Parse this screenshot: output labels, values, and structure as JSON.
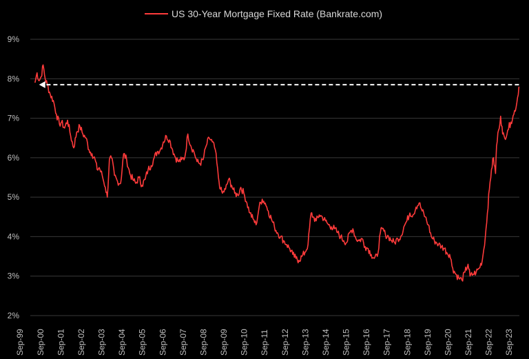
{
  "chart_data": {
    "type": "line",
    "title": "",
    "xlabel": "",
    "ylabel": "",
    "ylim": [
      2,
      9
    ],
    "ytick_values": [
      2,
      3,
      4,
      5,
      6,
      7,
      8,
      9
    ],
    "ytick_labels": [
      "2%",
      "3%",
      "4%",
      "5%",
      "6%",
      "7%",
      "8%",
      "9%"
    ],
    "xtick_labels": [
      "Sep-99",
      "Sep-00",
      "Sep-01",
      "Sep-02",
      "Sep-03",
      "Sep-04",
      "Sep-05",
      "Sep-06",
      "Sep-07",
      "Sep-08",
      "Sep-09",
      "Sep-10",
      "Sep-11",
      "Sep-12",
      "Sep-13",
      "Sep-14",
      "Sep-15",
      "Sep-16",
      "Sep-17",
      "Sep-18",
      "Sep-19",
      "Sep-20",
      "Sep-21",
      "Sep-22",
      "Sep-23"
    ],
    "xlim_years": [
      1999.67,
      2023.67
    ],
    "grid": "horizontal",
    "legend_position": "top-center",
    "series": [
      {
        "name": "US 30-Year Mortgage Fixed Rate (Bankrate.com)",
        "color": "#ff3b3b",
        "x": [
          1999.9,
          2000.0,
          2000.1,
          2000.2,
          2000.3,
          2000.4,
          2000.5,
          2000.65,
          2000.8,
          2000.95,
          2001.1,
          2001.2,
          2001.35,
          2001.5,
          2001.65,
          2001.8,
          2001.95,
          2002.1,
          2002.25,
          2002.4,
          2002.55,
          2002.7,
          2002.85,
          2002.95,
          2003.05,
          2003.2,
          2003.35,
          2003.45,
          2003.55,
          2003.65,
          2003.8,
          2003.95,
          2004.1,
          2004.25,
          2004.4,
          2004.55,
          2004.7,
          2004.85,
          2005.0,
          2005.15,
          2005.3,
          2005.45,
          2005.6,
          2005.75,
          2005.9,
          2006.05,
          2006.2,
          2006.35,
          2006.5,
          2006.65,
          2006.8,
          2006.95,
          2007.1,
          2007.25,
          2007.4,
          2007.55,
          2007.7,
          2007.85,
          2008.0,
          2008.15,
          2008.3,
          2008.45,
          2008.6,
          2008.75,
          2008.9,
          2009.0,
          2009.1,
          2009.25,
          2009.4,
          2009.55,
          2009.7,
          2009.85,
          2010.0,
          2010.15,
          2010.3,
          2010.45,
          2010.6,
          2010.75,
          2010.9,
          2011.05,
          2011.2,
          2011.35,
          2011.5,
          2011.65,
          2011.8,
          2011.95,
          2012.1,
          2012.25,
          2012.4,
          2012.55,
          2012.7,
          2012.85,
          2013.0,
          2013.15,
          2013.3,
          2013.45,
          2013.55,
          2013.7,
          2013.85,
          2014.0,
          2014.15,
          2014.3,
          2014.45,
          2014.6,
          2014.75,
          2014.9,
          2015.05,
          2015.2,
          2015.35,
          2015.5,
          2015.65,
          2015.8,
          2015.95,
          2016.1,
          2016.25,
          2016.4,
          2016.55,
          2016.7,
          2016.85,
          2016.95,
          2017.1,
          2017.25,
          2017.4,
          2017.55,
          2017.7,
          2017.85,
          2018.0,
          2018.15,
          2018.3,
          2018.45,
          2018.6,
          2018.75,
          2018.9,
          2019.05,
          2019.2,
          2019.35,
          2019.5,
          2019.6,
          2019.7,
          2019.85,
          2020.0,
          2020.1,
          2020.25,
          2020.4,
          2020.55,
          2020.7,
          2020.85,
          2021.0,
          2021.15,
          2021.25,
          2021.4,
          2021.55,
          2021.7,
          2021.85,
          2022.0,
          2022.1,
          2022.2,
          2022.3,
          2022.4,
          2022.5,
          2022.55,
          2022.65,
          2022.75,
          2022.85,
          2022.95,
          2023.1,
          2023.25,
          2023.4,
          2023.55,
          2023.65
        ],
        "values": [
          7.9,
          8.15,
          7.95,
          8.05,
          8.35,
          8.0,
          7.85,
          7.6,
          7.45,
          7.1,
          6.85,
          6.9,
          6.75,
          6.95,
          6.55,
          6.25,
          6.65,
          6.8,
          6.6,
          6.5,
          6.2,
          6.1,
          5.95,
          5.7,
          5.75,
          5.55,
          5.25,
          5.0,
          5.95,
          6.0,
          5.55,
          5.4,
          5.35,
          6.1,
          5.95,
          5.6,
          5.45,
          5.35,
          5.5,
          5.3,
          5.45,
          5.7,
          5.8,
          6.0,
          6.15,
          6.2,
          6.4,
          6.55,
          6.45,
          6.2,
          6.0,
          5.9,
          5.95,
          6.0,
          6.6,
          6.3,
          6.15,
          5.9,
          5.85,
          5.95,
          6.3,
          6.5,
          6.4,
          6.2,
          5.5,
          5.2,
          5.1,
          5.2,
          5.45,
          5.3,
          5.1,
          5.05,
          5.25,
          5.1,
          4.85,
          4.6,
          4.45,
          4.3,
          4.75,
          4.95,
          4.85,
          4.65,
          4.45,
          4.25,
          4.1,
          4.0,
          3.9,
          3.8,
          3.7,
          3.55,
          3.45,
          3.4,
          3.5,
          3.6,
          3.8,
          4.6,
          4.5,
          4.4,
          4.55,
          4.5,
          4.4,
          4.3,
          4.25,
          4.2,
          4.1,
          4.0,
          3.9,
          3.85,
          4.1,
          4.2,
          3.95,
          3.9,
          3.95,
          3.75,
          3.7,
          3.55,
          3.45,
          3.5,
          4.1,
          4.2,
          4.05,
          4.0,
          3.9,
          3.85,
          3.95,
          4.0,
          4.25,
          4.4,
          4.6,
          4.55,
          4.75,
          4.85,
          4.65,
          4.5,
          4.3,
          4.0,
          3.9,
          3.85,
          3.8,
          3.75,
          3.7,
          3.6,
          3.55,
          3.2,
          3.05,
          2.95,
          2.9,
          3.1,
          3.3,
          3.0,
          3.05,
          3.1,
          3.2,
          3.4,
          4.0,
          4.6,
          5.2,
          5.7,
          6.0,
          5.6,
          6.3,
          6.7,
          7.05,
          6.6,
          6.5,
          6.7,
          6.9,
          7.1,
          7.4,
          7.8
        ]
      }
    ],
    "annotations": [
      {
        "type": "dashed-arrow",
        "color": "#ffffff",
        "from": {
          "x": 2023.65,
          "y": 7.85
        },
        "to": {
          "x": 2000.1,
          "y": 7.85
        },
        "text": ""
      }
    ]
  }
}
